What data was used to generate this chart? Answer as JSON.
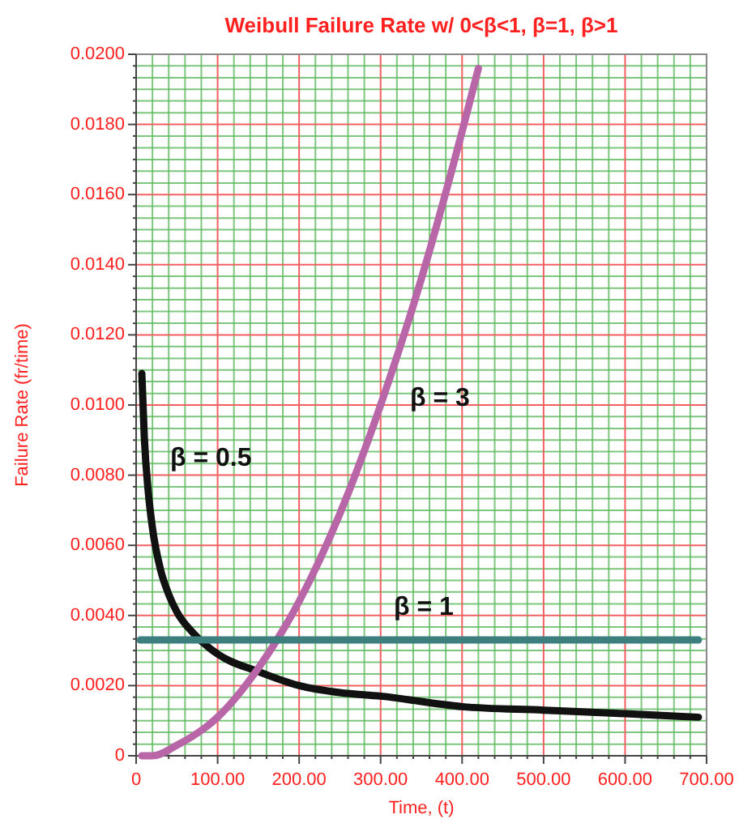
{
  "chart_data": {
    "type": "line",
    "title": "Weibull Failure Rate w/ 0<β<1, β=1, β>1",
    "xlabel": "Time, (t)",
    "ylabel": "Failure Rate (fr/time)",
    "xlim": [
      0,
      700
    ],
    "ylim": [
      0,
      0.02
    ],
    "xticks": [
      {
        "value": 0,
        "label": "0"
      },
      {
        "value": 20,
        "label": null
      },
      {
        "value": 40,
        "label": null
      },
      {
        "value": 60,
        "label": null
      },
      {
        "value": 80,
        "label": null
      },
      {
        "value": 100,
        "label": "100.00"
      },
      {
        "value": 120,
        "label": null
      },
      {
        "value": 140,
        "label": null
      },
      {
        "value": 160,
        "label": null
      },
      {
        "value": 180,
        "label": null
      },
      {
        "value": 200,
        "label": "200.00"
      },
      {
        "value": 220,
        "label": null
      },
      {
        "value": 240,
        "label": null
      },
      {
        "value": 260,
        "label": null
      },
      {
        "value": 280,
        "label": null
      },
      {
        "value": 300,
        "label": "300.00"
      },
      {
        "value": 320,
        "label": null
      },
      {
        "value": 340,
        "label": null
      },
      {
        "value": 360,
        "label": null
      },
      {
        "value": 380,
        "label": null
      },
      {
        "value": 400,
        "label": "400.00"
      },
      {
        "value": 420,
        "label": null
      },
      {
        "value": 440,
        "label": null
      },
      {
        "value": 460,
        "label": null
      },
      {
        "value": 480,
        "label": null
      },
      {
        "value": 500,
        "label": "500.00"
      },
      {
        "value": 520,
        "label": null
      },
      {
        "value": 540,
        "label": null
      },
      {
        "value": 560,
        "label": null
      },
      {
        "value": 580,
        "label": null
      },
      {
        "value": 600,
        "label": "600.00"
      },
      {
        "value": 620,
        "label": null
      },
      {
        "value": 640,
        "label": null
      },
      {
        "value": 660,
        "label": null
      },
      {
        "value": 680,
        "label": null
      },
      {
        "value": 700,
        "label": "700.00"
      }
    ],
    "yticks": [
      {
        "value": 0,
        "label": "0"
      },
      {
        "value": 0.00033,
        "label": null
      },
      {
        "value": 0.00067,
        "label": null
      },
      {
        "value": 0.001,
        "label": null
      },
      {
        "value": 0.00133,
        "label": null
      },
      {
        "value": 0.00167,
        "label": null
      },
      {
        "value": 0.002,
        "label": "0.0020"
      },
      {
        "value": 0.00233,
        "label": null
      },
      {
        "value": 0.00267,
        "label": null
      },
      {
        "value": 0.003,
        "label": null
      },
      {
        "value": 0.00333,
        "label": null
      },
      {
        "value": 0.00367,
        "label": null
      },
      {
        "value": 0.004,
        "label": "0.0040"
      },
      {
        "value": 0.00433,
        "label": null
      },
      {
        "value": 0.00467,
        "label": null
      },
      {
        "value": 0.005,
        "label": null
      },
      {
        "value": 0.00533,
        "label": null
      },
      {
        "value": 0.00567,
        "label": null
      },
      {
        "value": 0.006,
        "label": "0.0060"
      },
      {
        "value": 0.00633,
        "label": null
      },
      {
        "value": 0.00667,
        "label": null
      },
      {
        "value": 0.007,
        "label": null
      },
      {
        "value": 0.00733,
        "label": null
      },
      {
        "value": 0.00767,
        "label": null
      },
      {
        "value": 0.008,
        "label": "0.0080"
      },
      {
        "value": 0.00833,
        "label": null
      },
      {
        "value": 0.00867,
        "label": null
      },
      {
        "value": 0.009,
        "label": null
      },
      {
        "value": 0.00933,
        "label": null
      },
      {
        "value": 0.00967,
        "label": null
      },
      {
        "value": 0.01,
        "label": "0.0100"
      },
      {
        "value": 0.01033,
        "label": null
      },
      {
        "value": 0.01067,
        "label": null
      },
      {
        "value": 0.011,
        "label": null
      },
      {
        "value": 0.01133,
        "label": null
      },
      {
        "value": 0.01167,
        "label": null
      },
      {
        "value": 0.012,
        "label": "0.0120"
      },
      {
        "value": 0.01233,
        "label": null
      },
      {
        "value": 0.01267,
        "label": null
      },
      {
        "value": 0.013,
        "label": null
      },
      {
        "value": 0.01333,
        "label": null
      },
      {
        "value": 0.01367,
        "label": null
      },
      {
        "value": 0.014,
        "label": "0.0140"
      },
      {
        "value": 0.01433,
        "label": null
      },
      {
        "value": 0.01467,
        "label": null
      },
      {
        "value": 0.015,
        "label": null
      },
      {
        "value": 0.01533,
        "label": null
      },
      {
        "value": 0.01567,
        "label": null
      },
      {
        "value": 0.016,
        "label": "0.0160"
      },
      {
        "value": 0.01633,
        "label": null
      },
      {
        "value": 0.01667,
        "label": null
      },
      {
        "value": 0.017,
        "label": null
      },
      {
        "value": 0.01733,
        "label": null
      },
      {
        "value": 0.01767,
        "label": null
      },
      {
        "value": 0.018,
        "label": "0.0180"
      },
      {
        "value": 0.01833,
        "label": null
      },
      {
        "value": 0.01867,
        "label": null
      },
      {
        "value": 0.019,
        "label": null
      },
      {
        "value": 0.01933,
        "label": null
      },
      {
        "value": 0.01967,
        "label": null
      },
      {
        "value": 0.02,
        "label": "0.0200"
      }
    ],
    "grid": true,
    "marker": "none",
    "line_style": "solid",
    "series": [
      {
        "name": "β = 0.5",
        "color": "#111111",
        "x": [
          7,
          10,
          15,
          20,
          30,
          40,
          50,
          70,
          100,
          150,
          200,
          250,
          300,
          400,
          500,
          600,
          690
        ],
        "values": [
          0.0109,
          0.0091,
          0.0075,
          0.0065,
          0.0053,
          0.0046,
          0.0041,
          0.0035,
          0.0029,
          0.0024,
          0.002,
          0.0018,
          0.0017,
          0.0014,
          0.0013,
          0.0012,
          0.0011
        ]
      },
      {
        "name": "β = 3",
        "color": "#b866a8",
        "x": [
          7,
          20,
          50,
          100,
          150,
          200,
          250,
          300,
          350,
          400,
          420
        ],
        "values": [
          0,
          0,
          0.0003,
          0.0011,
          0.0025,
          0.0044,
          0.0069,
          0.01,
          0.0136,
          0.0178,
          0.0196
        ]
      },
      {
        "name": "β = 1",
        "color": "#3d7f7f",
        "x": [
          5,
          690
        ],
        "values": [
          0.0033,
          0.0033
        ]
      }
    ]
  }
}
